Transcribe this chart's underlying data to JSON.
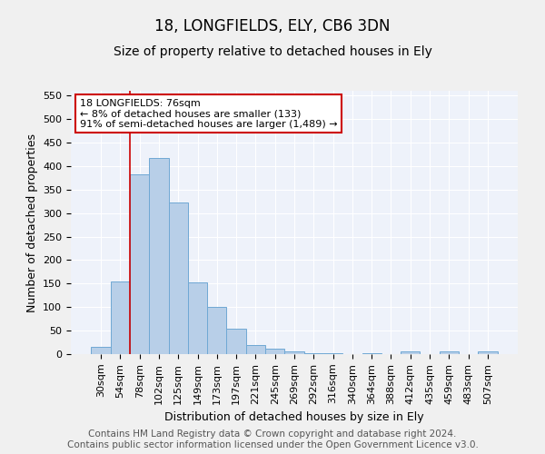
{
  "title": "18, LONGFIELDS, ELY, CB6 3DN",
  "subtitle": "Size of property relative to detached houses in Ely",
  "xlabel": "Distribution of detached houses by size in Ely",
  "ylabel": "Number of detached properties",
  "categories": [
    "30sqm",
    "54sqm",
    "78sqm",
    "102sqm",
    "125sqm",
    "149sqm",
    "173sqm",
    "197sqm",
    "221sqm",
    "245sqm",
    "269sqm",
    "292sqm",
    "316sqm",
    "340sqm",
    "364sqm",
    "388sqm",
    "412sqm",
    "435sqm",
    "459sqm",
    "483sqm",
    "507sqm"
  ],
  "values": [
    15,
    155,
    383,
    418,
    323,
    152,
    100,
    55,
    20,
    12,
    6,
    2,
    1,
    0,
    1,
    0,
    5,
    0,
    5,
    0,
    5
  ],
  "bar_color": "#b8cfe8",
  "bar_edge_color": "#6fa8d4",
  "vline_color": "#cc0000",
  "vline_index": 1.5,
  "annotation_text": "18 LONGFIELDS: 76sqm\n← 8% of detached houses are smaller (133)\n91% of semi-detached houses are larger (1,489) →",
  "annotation_box_color": "#ffffff",
  "annotation_box_edge": "#cc0000",
  "ylim": [
    0,
    560
  ],
  "yticks": [
    0,
    50,
    100,
    150,
    200,
    250,
    300,
    350,
    400,
    450,
    500,
    550
  ],
  "footer": "Contains HM Land Registry data © Crown copyright and database right 2024.\nContains public sector information licensed under the Open Government Licence v3.0.",
  "bg_color": "#eef2fa",
  "grid_color": "#ffffff",
  "title_fontsize": 12,
  "subtitle_fontsize": 10,
  "axis_label_fontsize": 9,
  "tick_fontsize": 8,
  "footer_fontsize": 7.5
}
